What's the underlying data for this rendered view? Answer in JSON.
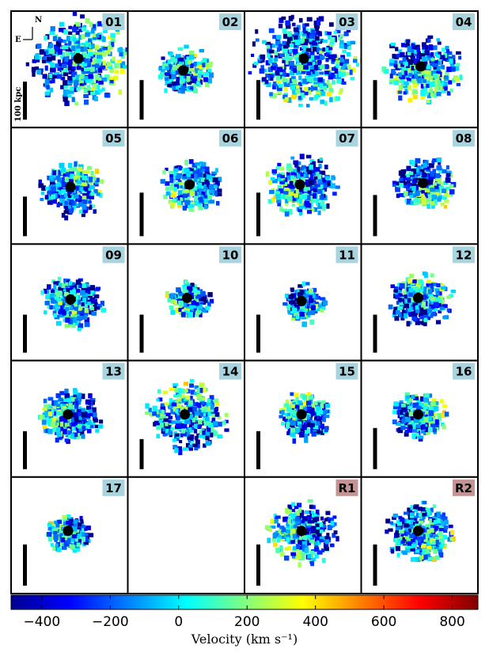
{
  "panels": [
    {
      "label": "01"
    },
    {
      "label": "02"
    },
    {
      "label": "03"
    },
    {
      "label": "04"
    },
    {
      "label": "05"
    },
    {
      "label": "06"
    },
    {
      "label": "07"
    },
    {
      "label": "08"
    },
    {
      "label": "09"
    },
    {
      "label": "10"
    },
    {
      "label": "11"
    },
    {
      "label": "12"
    },
    {
      "label": "13"
    },
    {
      "label": "14"
    },
    {
      "label": "15"
    },
    {
      "label": "16"
    },
    {
      "label": "17"
    },
    {
      "label": null
    },
    {
      "label": "R1"
    },
    {
      "label": "R2"
    }
  ],
  "scale_bar_label": "100 kpc",
  "compass": {
    "north": "N",
    "east": "E"
  },
  "colorbar": {
    "xlim": [
      -490,
      875
    ],
    "xticks": [
      {
        "value": -400,
        "label": "−400"
      },
      {
        "value": -200,
        "label": "−200"
      },
      0,
      200,
      400,
      600,
      800
    ],
    "label": "Velocity (km s⁻¹)"
  }
}
